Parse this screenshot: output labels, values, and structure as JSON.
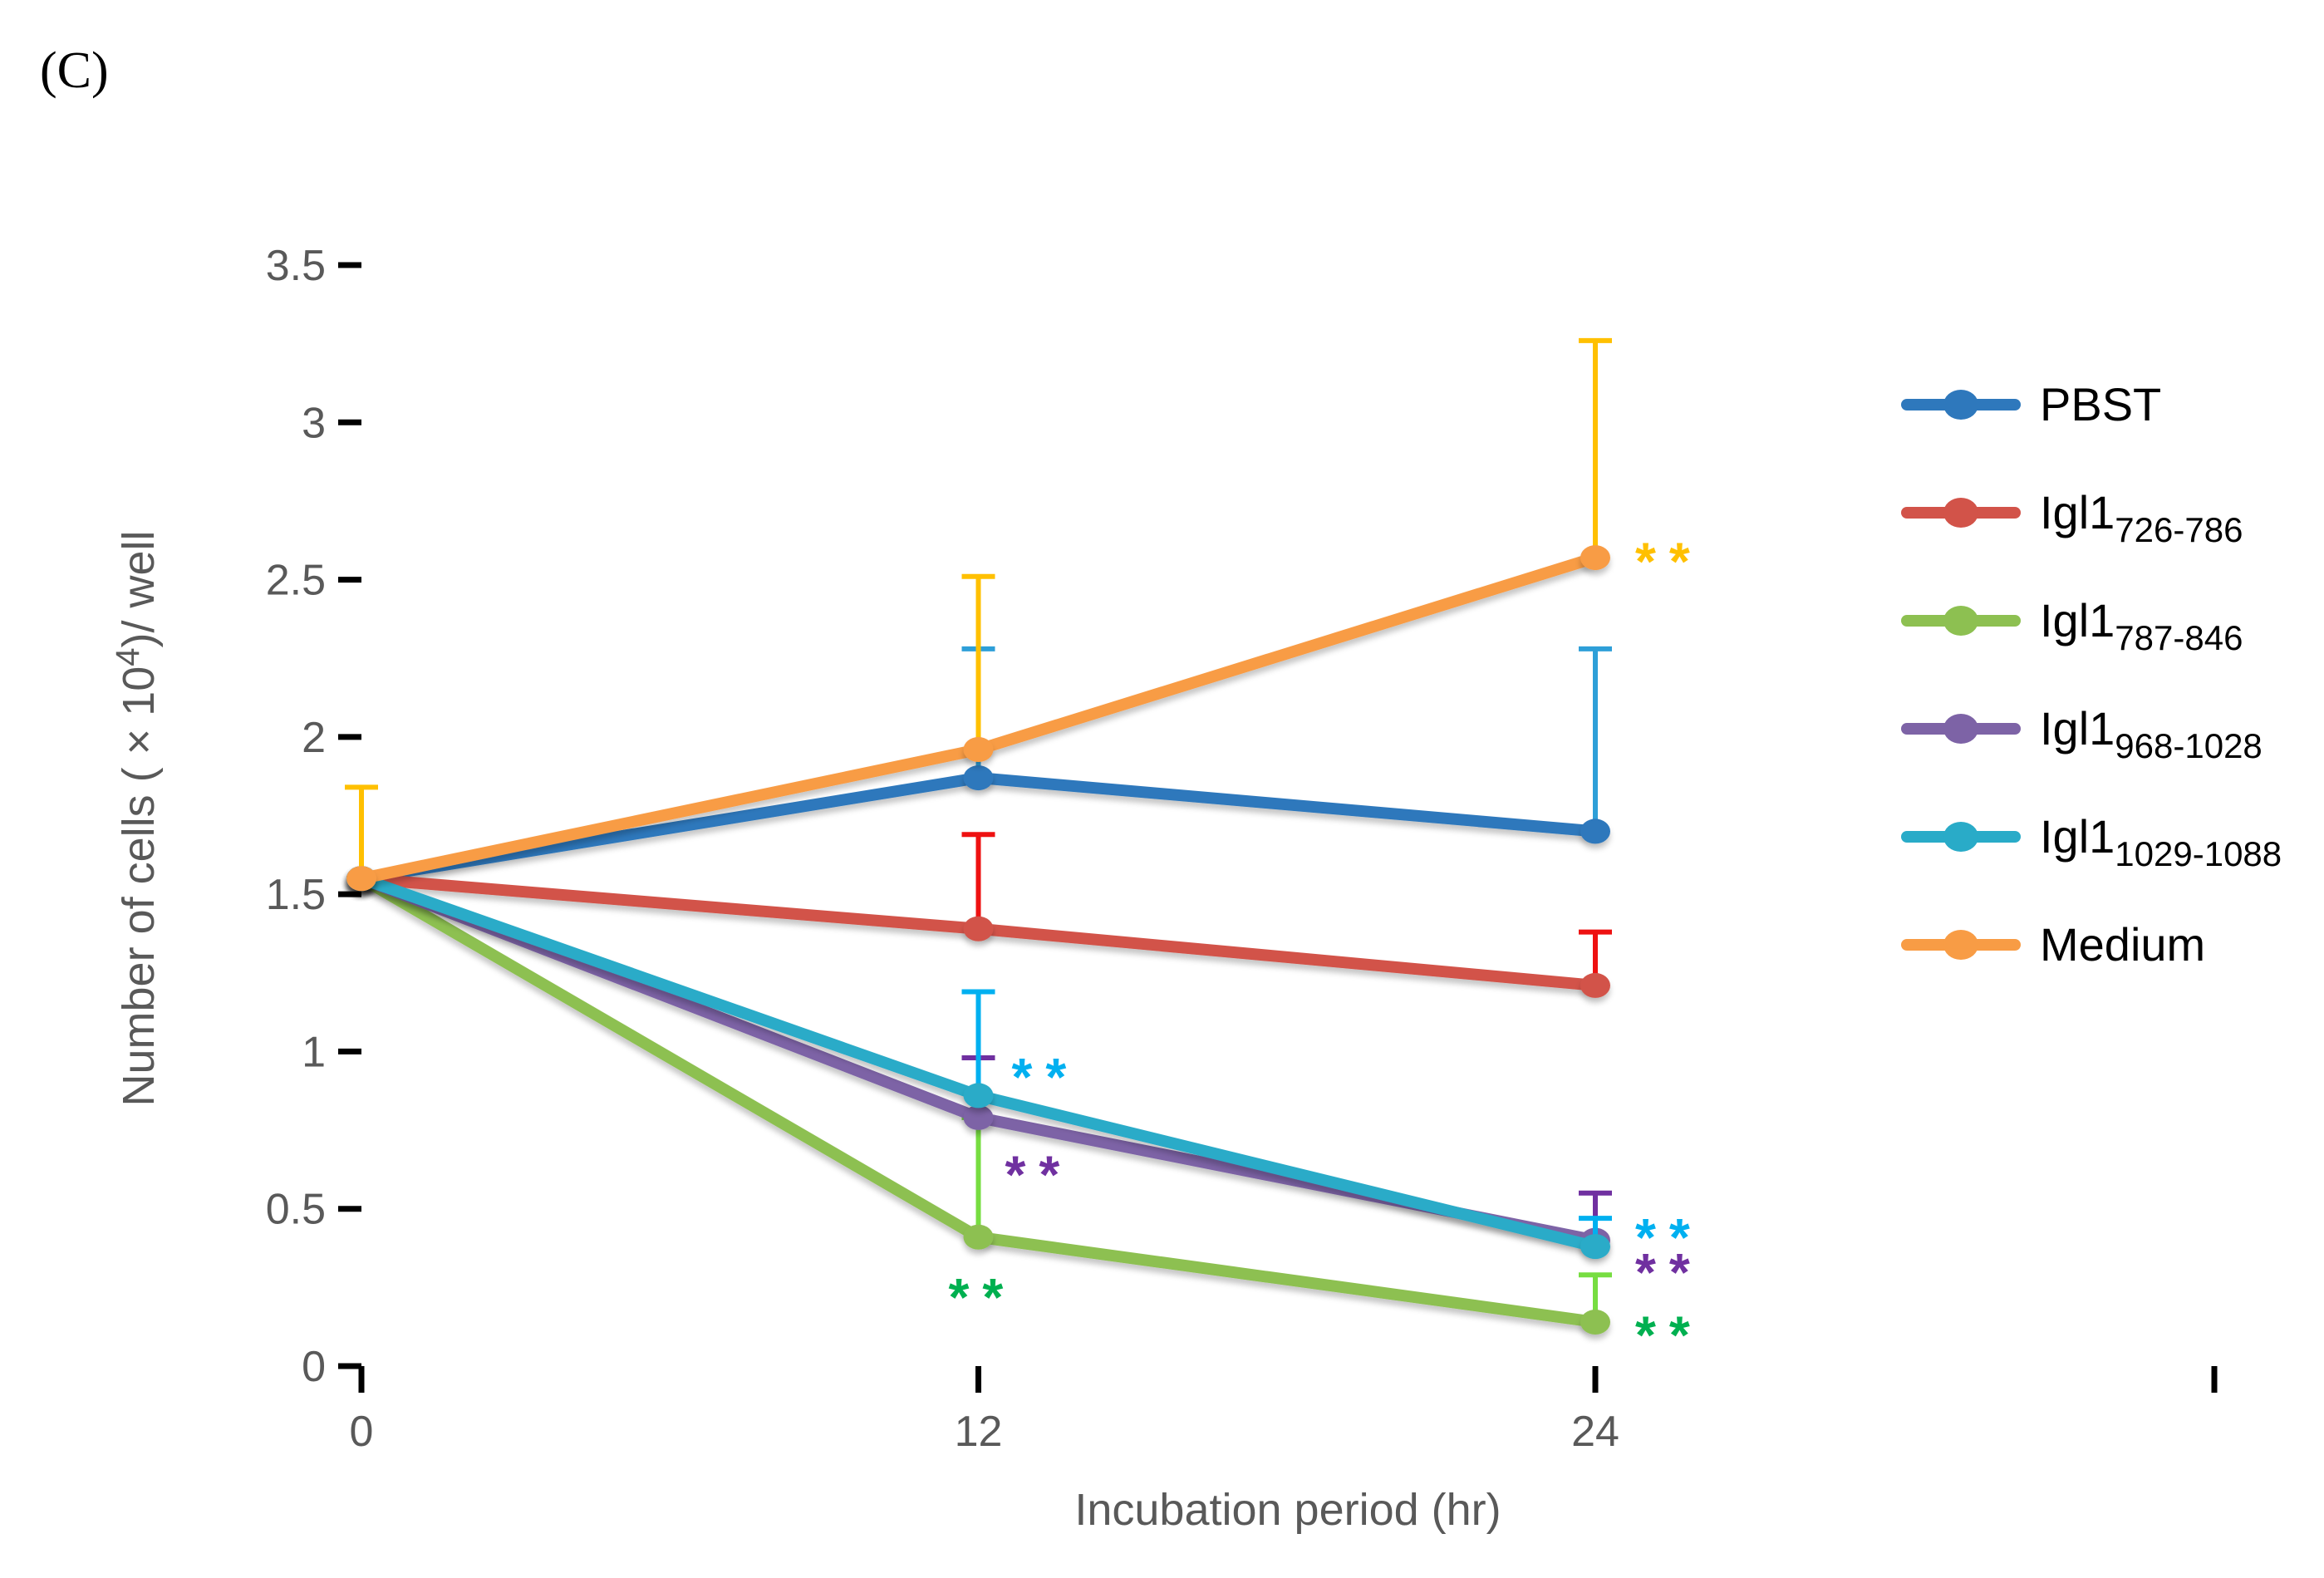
{
  "figure_label": "(C)",
  "chart_data": {
    "type": "line",
    "x": [
      0,
      12,
      24
    ],
    "xtick_labels": [
      "0",
      "12",
      "24"
    ],
    "xlabel": "Incubation period (hr)",
    "ylabel_parts": {
      "pre": "Number of cells ( × 10",
      "sup": "4",
      "post": ")/ well"
    },
    "ylim": [
      0,
      3.5
    ],
    "ytick_step": 0.5,
    "ytick_labels": [
      "0",
      "0.5",
      "1",
      "1.5",
      "2",
      "2.5",
      "3",
      "3.5"
    ],
    "grid": false,
    "legend_position": "right",
    "axis_color": "#000000",
    "tick_label_color": "#595959",
    "series": [
      {
        "name": "PBST",
        "legend_base": "PBST",
        "legend_sub": "",
        "color": "#2E78BC",
        "error_color": "#2E9FD8",
        "values": [
          1.55,
          1.87,
          1.7
        ],
        "error_up": [
          null,
          0.41,
          0.58
        ]
      },
      {
        "name": "Igl1 726-786",
        "legend_base": "Igl1",
        "legend_sub": "726-786",
        "color": "#D25349",
        "error_color": "#EE1111",
        "values": [
          1.55,
          1.39,
          1.21
        ],
        "error_up": [
          null,
          0.3,
          0.17
        ]
      },
      {
        "name": "Igl1 787-846",
        "legend_base": "Igl1",
        "legend_sub": "787-846",
        "color": "#8DC051",
        "error_color": "#77DD41",
        "values": [
          1.55,
          0.41,
          0.14
        ],
        "error_up": [
          null,
          0.38,
          0.15
        ]
      },
      {
        "name": "Igl1 968-1028",
        "legend_base": "Igl1",
        "legend_sub": "968-1028",
        "color": "#7D63A6",
        "error_color": "#7030A0",
        "values": [
          1.55,
          0.79,
          0.4
        ],
        "error_up": [
          null,
          0.19,
          0.15
        ]
      },
      {
        "name": "Igl1 1029-1088",
        "legend_base": "Igl1",
        "legend_sub": "1029-1088",
        "color": "#29ABC8",
        "error_color": "#00B0F0",
        "values": [
          1.55,
          0.86,
          0.38
        ],
        "error_up": [
          null,
          0.33,
          0.09
        ]
      },
      {
        "name": "Medium",
        "legend_base": "Medium",
        "legend_sub": "",
        "color": "#F89C45",
        "error_color": "#FFC000",
        "values": [
          1.55,
          1.96,
          2.57
        ],
        "error_up": [
          0.29,
          0.55,
          0.69
        ]
      }
    ],
    "annotations": [
      {
        "text": "**",
        "color": "#FFC000",
        "x": 24,
        "y": 2.58,
        "dx": 48
      },
      {
        "text": "**",
        "color": "#00B0F0",
        "x": 12,
        "y": 0.94,
        "dx": 40
      },
      {
        "text": "**",
        "color": "#7030A0",
        "x": 12,
        "y": 0.63,
        "dx": 32
      },
      {
        "text": "**",
        "color": "#00B050",
        "x": 12,
        "y": 0.24,
        "dx": -36
      },
      {
        "text": "**",
        "color": "#00B0F0",
        "x": 24,
        "y": 0.43,
        "dx": 48
      },
      {
        "text": "**",
        "color": "#7030A0",
        "x": 24,
        "y": 0.32,
        "dx": 48
      },
      {
        "text": "**",
        "color": "#00B050",
        "x": 24,
        "y": 0.12,
        "dx": 48
      }
    ]
  }
}
